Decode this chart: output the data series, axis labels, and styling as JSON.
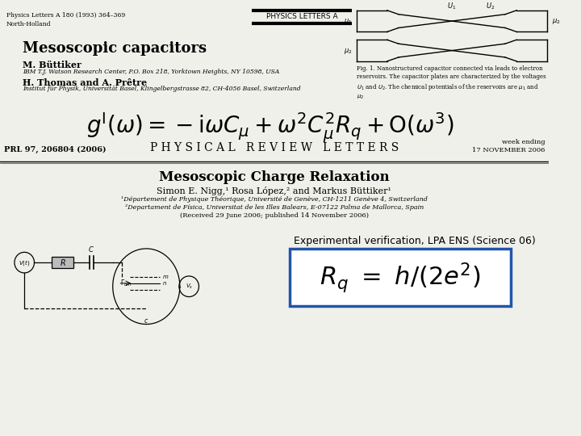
{
  "bg_color": "#f0f0eb",
  "top_left_journal": "Physics Letters A 180 (1993) 364–369\nNorth-Holland",
  "top_center_journal": "PHYSICS LETTERS A",
  "paper1_title": "Mesoscopic capacitors",
  "paper1_author1": "M. Büttiker",
  "paper1_author1_affil": "IBM T.J. Watson Research Center, P.O. Box 218, Yorktown Heights, NY 10598, USA",
  "paper1_author2": "H. Thomas and A. Prêtre",
  "paper1_author2_affil": "Institut für Physik, Universität Basel, Klingelbergstrasse 82, CH-4056 Basel, Switzerland",
  "formula_main": "$g^{\\mathrm{I}}(\\omega) = -\\mathrm{i}\\omega C_\\mu + \\omega^2 C_\\mu^2 R_q + \\mathrm{O}(\\omega^3)$",
  "prl_label": "PRL 97, 206804 (2006)",
  "prl_journal": "P H Y S I C A L   R E V I E W   L E T T E R S",
  "prl_week": "week ending\n17 NOVEMBER 2006",
  "paper2_title": "Mesoscopic Charge Relaxation",
  "paper2_authors": "Simon E. Nigg,¹ Rosa López,² and Markus Büttiker¹",
  "paper2_affil1": "¹Département de Physique Théorique, Université de Genève, CH-1211 Genève 4, Switzerland",
  "paper2_affil2": "²Departament de Física, Universitat de les Illes Balears, E-07122 Palma de Mallorca, Spain",
  "paper2_received": "(Received 29 June 2006; published 14 November 2006)",
  "exp_label": "Experimental verification, LPA ENS (Science 06)",
  "formula_box": "$R_q \\ = \\ h/(2e^2)$",
  "colors": {
    "black": "#000000",
    "dark_gray": "#222222",
    "mid_gray": "#888888",
    "light_gray": "#cccccc",
    "box_border": "#2255aa",
    "r_box_fill": "#bbbbbb"
  }
}
